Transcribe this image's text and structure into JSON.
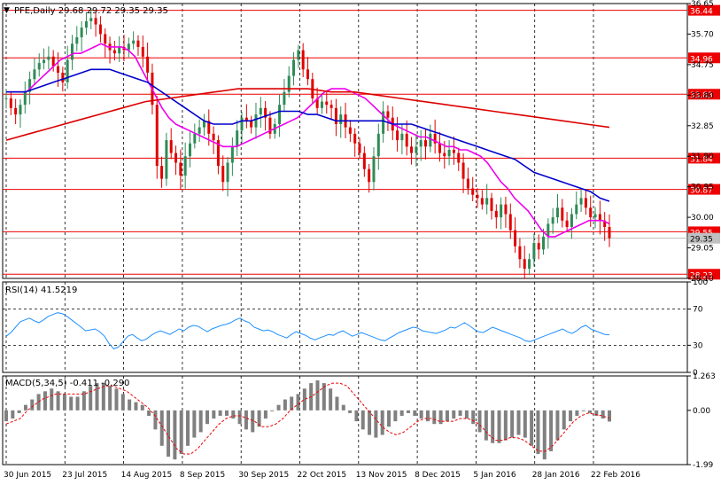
{
  "colors": {
    "background": "#ffffff",
    "frame": "#000000",
    "grid": "#000000",
    "bull": "#2e8b57",
    "bear": "#e00000",
    "ma_fast": "#ee00ee",
    "ma_mid": "#0000cc",
    "ma_slow": "#dd0000",
    "hline": "#ee0000",
    "price_label_bg": "#ee0000",
    "price_label_text": "#ffffff",
    "rsi_line": "#1e90ff",
    "macd_hist": "#808080",
    "macd_signal": "#ee0000"
  },
  "chart_data": [
    {
      "type": "candlestick",
      "title": "PFE,Daily  29.68 29.72 29.35 29.35",
      "symbol": "PFE",
      "timeframe": "Daily",
      "ohlc_last": {
        "open": 29.68,
        "high": 29.72,
        "low": 29.35,
        "close": 29.35
      },
      "ylim": [
        28.1,
        36.65
      ],
      "y_ticks": [
        36.65,
        35.7,
        34.75,
        33.8,
        32.85,
        31.9,
        30.95,
        30.0,
        29.05,
        28.1
      ],
      "horizontal_levels": [
        36.44,
        34.96,
        33.83,
        31.84,
        30.87,
        29.55,
        28.23
      ],
      "current_price": 29.35,
      "x_labels": [
        "30 Jun 2015",
        "23 Jul 2015",
        "14 Aug 2015",
        "8 Sep 2015",
        "30 Sep 2015",
        "22 Oct 2015",
        "13 Nov 2015",
        "8 Dec 2015",
        "5 Jan 2016",
        "28 Jan 2016",
        "22 Feb 2016"
      ],
      "close_series": [
        33.7,
        33.4,
        33.2,
        33.5,
        33.9,
        34.3,
        34.6,
        34.8,
        34.9,
        35.0,
        34.7,
        34.5,
        34.2,
        34.9,
        35.4,
        35.6,
        35.9,
        36.1,
        36.2,
        36.0,
        35.7,
        35.4,
        35.2,
        35.1,
        35.3,
        35.2,
        35.4,
        35.5,
        35.3,
        35.0,
        34.5,
        33.5,
        31.6,
        31.2,
        32.4,
        32.0,
        31.7,
        31.3,
        31.9,
        32.3,
        32.6,
        32.8,
        33.0,
        32.6,
        32.4,
        31.6,
        31.1,
        31.7,
        32.2,
        32.7,
        33.1,
        33.0,
        32.8,
        33.2,
        33.4,
        33.1,
        32.6,
        32.9,
        33.5,
        33.9,
        34.4,
        34.9,
        35.2,
        34.6,
        34.3,
        33.7,
        33.4,
        33.6,
        33.5,
        33.4,
        32.9,
        33.2,
        32.8,
        32.6,
        32.3,
        32.0,
        31.5,
        31.1,
        31.9,
        32.6,
        33.3,
        33.1,
        32.7,
        32.4,
        32.6,
        32.2,
        32.0,
        32.2,
        32.4,
        32.2,
        32.6,
        32.3,
        32.0,
        31.9,
        32.1,
        32.0,
        31.7,
        31.2,
        30.9,
        30.7,
        30.6,
        30.4,
        30.6,
        30.2,
        30.0,
        30.4,
        30.1,
        29.6,
        29.1,
        28.7,
        28.4,
        28.7,
        29.2,
        29.0,
        29.4,
        29.8,
        30.0,
        30.3,
        29.9,
        29.7,
        30.1,
        30.4,
        30.6,
        30.3,
        30.0,
        30.1,
        29.9,
        29.7,
        29.35
      ],
      "moving_averages": [
        {
          "color": "#ee00ee",
          "values": [
            33.9,
            33.9,
            33.9,
            33.9,
            34.1,
            34.3,
            34.5,
            34.7,
            34.9,
            35.0,
            35.1,
            35.1,
            35.2,
            35.3,
            35.4,
            35.3,
            35.3,
            35.3,
            35.2,
            35.0,
            34.6,
            34.2,
            33.8,
            33.4,
            33.1,
            32.9,
            32.8,
            32.7,
            32.6,
            32.5,
            32.4,
            32.3,
            32.2,
            32.2,
            32.2,
            32.3,
            32.4,
            32.5,
            32.6,
            32.7,
            32.8,
            32.9,
            33.0,
            33.1,
            33.3,
            33.5,
            33.7,
            33.9,
            34.0,
            34.0,
            34.0,
            33.9,
            33.8,
            33.7,
            33.5,
            33.3,
            33.1,
            32.9,
            32.8,
            32.7,
            32.6,
            32.5,
            32.5,
            32.4,
            32.3,
            32.2,
            32.2,
            32.1,
            32.1,
            32.0,
            31.9,
            31.7,
            31.4,
            31.1,
            30.9,
            30.6,
            30.4,
            30.2,
            29.9,
            29.6,
            29.4,
            29.4,
            29.5,
            29.6,
            29.7,
            29.8,
            29.9,
            29.9,
            29.9,
            29.8
          ]
        },
        {
          "color": "#0000cc",
          "values": [
            33.9,
            33.9,
            33.9,
            34.0,
            34.1,
            34.2,
            34.3,
            34.4,
            34.5,
            34.6,
            34.6,
            34.6,
            34.5,
            34.4,
            34.3,
            34.2,
            34.0,
            33.8,
            33.6,
            33.4,
            33.2,
            33.0,
            32.9,
            32.9,
            32.9,
            33.0,
            33.0,
            33.1,
            33.2,
            33.3,
            33.3,
            33.3,
            33.2,
            33.2,
            33.1,
            33.0,
            33.0,
            33.0,
            33.0,
            33.0,
            33.0,
            32.9,
            32.9,
            32.9,
            32.8,
            32.7,
            32.6,
            32.5,
            32.4,
            32.3,
            32.2,
            32.1,
            32.0,
            31.9,
            31.8,
            31.6,
            31.4,
            31.3,
            31.2,
            31.1,
            31.0,
            30.9,
            30.8,
            30.6,
            30.5
          ]
        },
        {
          "color": "#dd0000",
          "values": [
            32.4,
            32.6,
            32.8,
            33.0,
            33.2,
            33.4,
            33.6,
            33.7,
            33.8,
            33.9,
            34.0,
            34.0,
            34.0,
            34.0,
            33.9,
            33.9,
            33.8,
            33.7,
            33.6,
            33.5,
            33.4,
            33.3,
            33.2,
            33.1,
            33.0,
            32.9,
            32.8
          ]
        }
      ]
    },
    {
      "type": "line",
      "title": "RSI(14) 41.5219",
      "ylim": [
        0,
        100
      ],
      "y_ticks": [
        100,
        70,
        30,
        0
      ],
      "levels": [
        70,
        30
      ],
      "values": [
        40,
        44,
        50,
        56,
        58,
        60,
        57,
        55,
        58,
        62,
        64,
        66,
        65,
        62,
        58,
        54,
        50,
        46,
        47,
        48,
        45,
        40,
        32,
        26,
        28,
        34,
        40,
        42,
        38,
        35,
        37,
        41,
        44,
        46,
        44,
        42,
        45,
        48,
        46,
        50,
        52,
        51,
        48,
        45,
        48,
        50,
        52,
        53,
        55,
        58,
        60,
        57,
        55,
        50,
        48,
        46,
        47,
        45,
        42,
        40,
        38,
        42,
        45,
        43,
        41,
        38,
        36,
        38,
        40,
        42,
        41,
        44,
        46,
        43,
        40,
        42,
        44,
        42,
        40,
        38,
        36,
        35,
        38,
        41,
        44,
        46,
        48,
        50,
        49,
        46,
        45,
        44,
        43,
        45,
        47,
        50,
        49,
        52,
        55,
        52,
        48,
        45,
        44,
        47,
        50,
        48,
        46,
        44,
        42,
        40,
        38,
        35,
        34,
        36,
        38,
        40,
        42,
        44,
        46,
        48,
        45,
        43,
        46,
        50,
        52,
        48,
        46,
        44,
        42,
        41.5219
      ]
    },
    {
      "type": "bar",
      "title": "MACD(5,34,5) -0.411 -0.290",
      "ylim": [
        -1.99,
        1.263
      ],
      "y_ticks": [
        1.263,
        0.0,
        -1.99
      ],
      "values": [
        -0.4,
        -0.3,
        -0.1,
        0.2,
        0.4,
        0.6,
        0.7,
        0.8,
        0.7,
        0.6,
        0.5,
        0.5,
        0.7,
        0.9,
        1.0,
        1.0,
        0.9,
        0.8,
        0.6,
        0.4,
        0.3,
        0.2,
        -0.2,
        -0.7,
        -1.3,
        -1.7,
        -1.8,
        -1.6,
        -1.3,
        -1.0,
        -0.8,
        -0.5,
        -0.3,
        -0.2,
        -0.2,
        -0.3,
        -0.5,
        -0.7,
        -0.8,
        -0.6,
        -0.3,
        0.0,
        0.2,
        0.4,
        0.5,
        0.6,
        0.8,
        1.0,
        1.1,
        1.0,
        0.8,
        0.5,
        0.2,
        -0.1,
        -0.4,
        -0.7,
        -0.9,
        -1.0,
        -0.9,
        -0.6,
        -0.4,
        -0.2,
        -0.1,
        -0.2,
        -0.3,
        -0.4,
        -0.5,
        -0.5,
        -0.4,
        -0.3,
        -0.2,
        -0.3,
        -0.5,
        -0.8,
        -1.1,
        -1.2,
        -1.2,
        -1.1,
        -1.0,
        -0.9,
        -1.0,
        -1.3,
        -1.6,
        -1.8,
        -1.5,
        -1.1,
        -0.7,
        -0.4,
        -0.2,
        0.0,
        -0.1,
        -0.2,
        -0.3,
        -0.411
      ],
      "signal": [
        -0.5,
        -0.4,
        -0.3,
        0.0,
        0.2,
        0.4,
        0.5,
        0.6,
        0.6,
        0.6,
        0.6,
        0.6,
        0.7,
        0.8,
        0.9,
        0.9,
        0.8,
        0.7,
        0.5,
        0.3,
        0.1,
        -0.2,
        -0.6,
        -1.0,
        -1.4,
        -1.6,
        -1.6,
        -1.4,
        -1.1,
        -0.8,
        -0.5,
        -0.3,
        -0.2,
        -0.2,
        -0.3,
        -0.4,
        -0.6,
        -0.6,
        -0.5,
        -0.3,
        0.0,
        0.2,
        0.4,
        0.5,
        0.7,
        0.9,
        1.0,
        1.0,
        0.9,
        0.6,
        0.3,
        0.0,
        -0.3,
        -0.6,
        -0.8,
        -0.9,
        -0.8,
        -0.6,
        -0.4,
        -0.3,
        -0.3,
        -0.4,
        -0.4,
        -0.4,
        -0.3,
        -0.3,
        -0.4,
        -0.6,
        -0.9,
        -1.1,
        -1.1,
        -1.0,
        -1.0,
        -1.1,
        -1.3,
        -1.5,
        -1.5,
        -1.3,
        -1.0,
        -0.7,
        -0.4,
        -0.2,
        -0.1,
        -0.15,
        -0.2,
        -0.29
      ]
    }
  ]
}
